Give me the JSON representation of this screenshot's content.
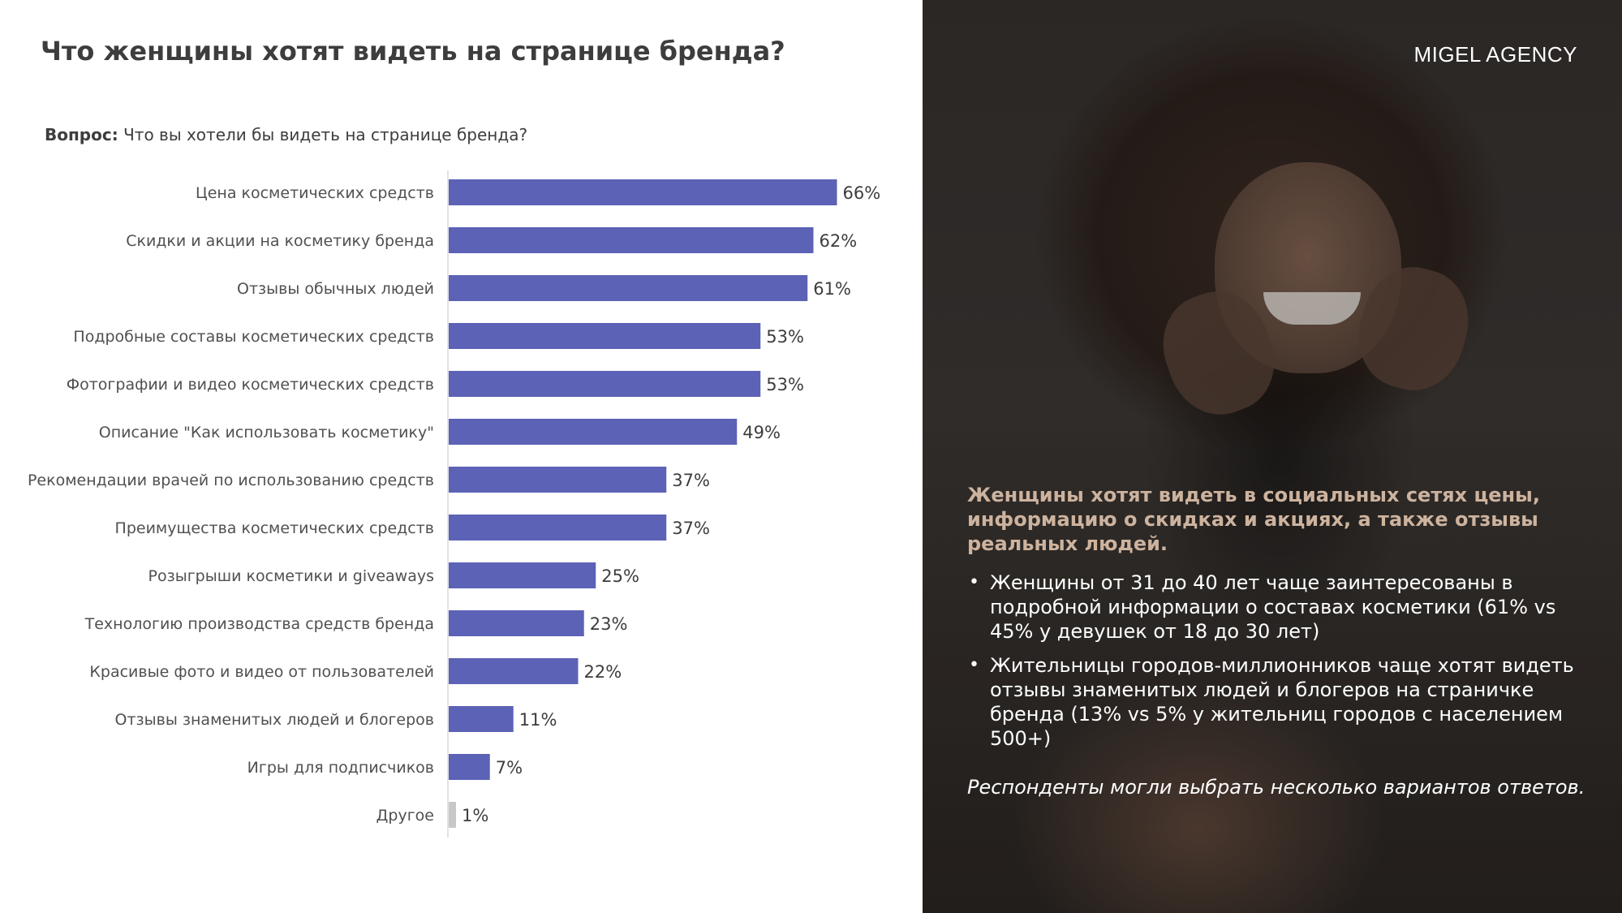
{
  "page": {
    "title": "Что женщины хотят видеть на странице бренда?",
    "question_label": "Вопрос:",
    "question_text": "Что вы хотели бы видеть на странице бренда?"
  },
  "brand": "MIGEL AGENCY",
  "panel": {
    "headline": "Женщины хотят видеть в социальных сетях цены, информацию о скидках и акциях, а также отзывы реальных людей.",
    "bullets": [
      "Женщины от 31 до 40 лет чаще заинтересованы в подробной информации о составах косметики (61% vs 45% у девушек от 18 до 30 лет)",
      "Жительницы городов-миллионников чаще хотят видеть отзывы знаменитых людей и блогеров на страничке бренда (13% vs 5% у жительниц городов с населением 500+)"
    ],
    "footnote": "Респонденты могли выбрать несколько вариантов ответов.",
    "bullet_symbol": "•",
    "photo_icon": "smiling-woman-photo"
  },
  "chart_data": {
    "type": "bar",
    "orientation": "horizontal",
    "categories": [
      "Цена косметических средств",
      "Скидки и акции на косметику бренда",
      "Отзывы обычных людей",
      "Подробные составы косметических средств",
      "Фотографии и видео косметических средств",
      "Описание \"Как использовать косметику\"",
      "Рекомендации врачей по использованию средств",
      "Преимущества косметических средств",
      "Розыгрыши косметики и giveaways",
      "Технологию производства  средств бренда",
      "Красивые фото и видео от пользователей",
      "Отзывы знаменитых людей и блогеров",
      "Игры для подписчиков",
      "Другое"
    ],
    "values": [
      66,
      62,
      61,
      53,
      53,
      49,
      37,
      37,
      25,
      23,
      22,
      11,
      7,
      1
    ],
    "value_labels": [
      "66%",
      "62%",
      "61%",
      "53%",
      "53%",
      "49%",
      "37%",
      "37%",
      "25%",
      "23%",
      "22%",
      "11%",
      "7%",
      "1%"
    ],
    "unit": "%",
    "xlim": [
      0,
      100
    ],
    "grid": false,
    "legend": "none",
    "colors": {
      "bar": "#5c62b6",
      "other_bar": "#c8c8c8",
      "axis": "#d9d9d9"
    }
  }
}
